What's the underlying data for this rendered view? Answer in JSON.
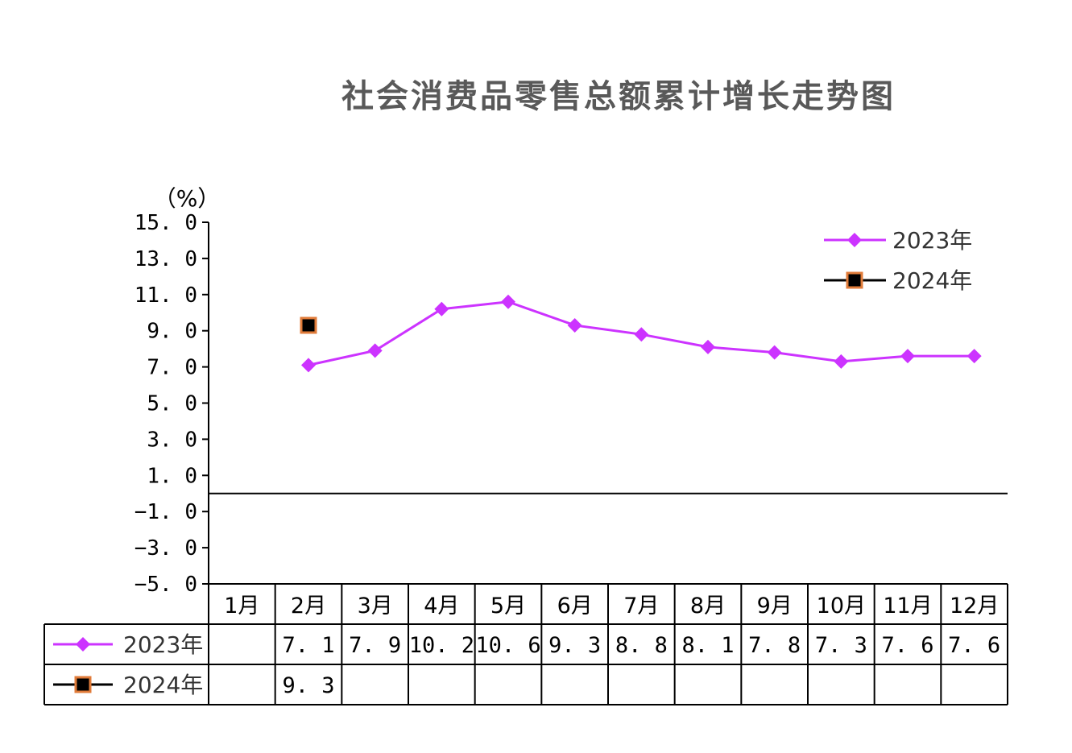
{
  "chart_data": {
    "type": "line",
    "title": "社会消费品零售总额累计增长走势图",
    "unit_label": "（%）",
    "categories": [
      "1月",
      "2月",
      "3月",
      "4月",
      "5月",
      "6月",
      "7月",
      "8月",
      "9月",
      "10月",
      "11月",
      "12月"
    ],
    "ylim": [
      -5.0,
      15.0
    ],
    "yticks": [
      "15. 0",
      "13. 0",
      "11. 0",
      "9. 0",
      "7. 0",
      "5. 0",
      "3. 0",
      "1. 0",
      "−1. 0",
      "−3. 0",
      "−5. 0"
    ],
    "ytick_values": [
      15,
      13,
      11,
      9,
      7,
      5,
      3,
      1,
      -1,
      -3,
      -5
    ],
    "baseline": 0,
    "grid": false,
    "legend_position": "top-right",
    "series": [
      {
        "name": "2023年",
        "color": "#CC33FF",
        "marker": "diamond",
        "values": [
          null,
          7.1,
          7.9,
          10.2,
          10.6,
          9.3,
          8.8,
          8.1,
          7.8,
          7.3,
          7.6,
          7.6
        ],
        "labels": [
          "",
          "7. 1",
          "7. 9",
          "10. 2",
          "10. 6",
          "9. 3",
          "8. 8",
          "8. 1",
          "7. 8",
          "7. 3",
          "7. 6",
          "7. 6"
        ]
      },
      {
        "name": "2024年",
        "color": "#000000",
        "marker_edge": "#E07B39",
        "marker": "square",
        "values": [
          null,
          9.3,
          null,
          null,
          null,
          null,
          null,
          null,
          null,
          null,
          null,
          null
        ],
        "labels": [
          "",
          "9. 3",
          "",
          "",
          "",
          "",
          "",
          "",
          "",
          "",
          "",
          ""
        ]
      }
    ]
  }
}
